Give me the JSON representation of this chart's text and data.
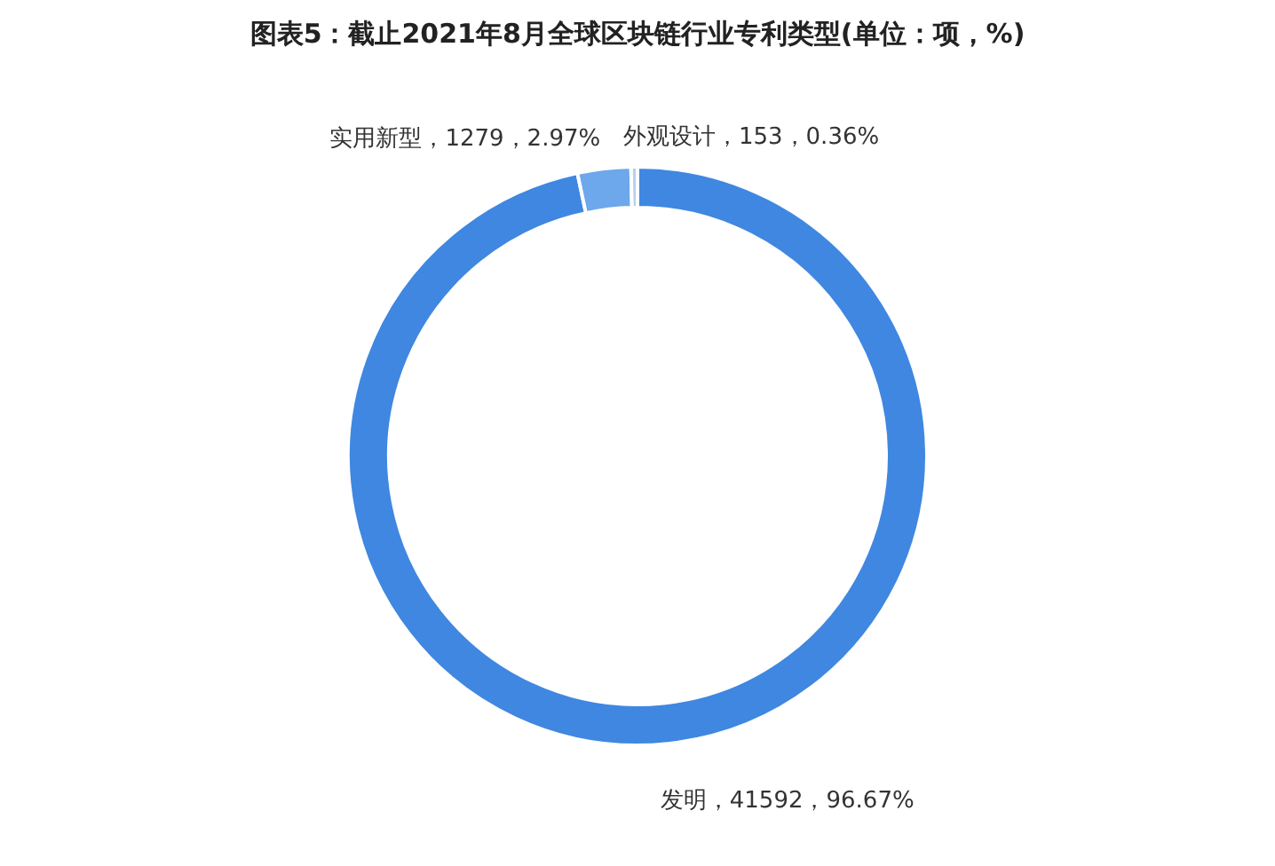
{
  "chart_data": {
    "type": "donut",
    "title": "图表5：截止2021年8月全球区块链行业专利类型(单位：项，%)",
    "categories": [
      "发明",
      "实用新型",
      "外观设计"
    ],
    "values": [
      41592,
      1279,
      153
    ],
    "colors": [
      "#3f87e1",
      "#6da7ec",
      "#b4d0f3"
    ],
    "value_labels": [
      "41592，96.67%",
      "1279，2.97%",
      "153，0.36%"
    ],
    "legend": false
  }
}
